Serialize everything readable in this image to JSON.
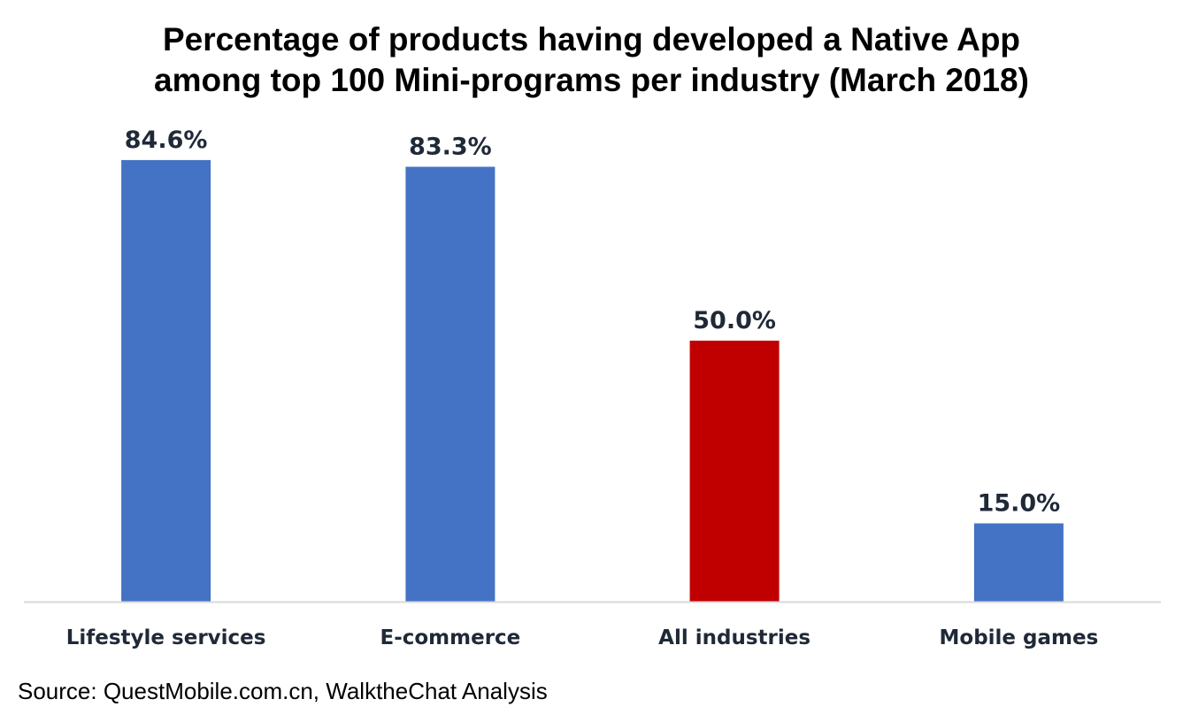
{
  "chart_data": {
    "type": "bar",
    "title": [
      "Percentage of products having developed a Native App",
      "among top 100 Mini-programs per industry (March 2018)"
    ],
    "categories": [
      "Lifestyle services",
      "E-commerce",
      "All industries",
      "Mobile games"
    ],
    "values": [
      84.6,
      83.3,
      50.0,
      15.0
    ],
    "data_labels": [
      "84.6%",
      "83.3%",
      "50.0%",
      "15.0%"
    ],
    "bar_colors": [
      "#4472C4",
      "#4472C4",
      "#C00000",
      "#4472C4"
    ],
    "label_color": "#1F2937",
    "axis_color": "#D9D9D9",
    "xlabel": "",
    "ylabel": "",
    "ylim": [
      0,
      100
    ],
    "grid": false,
    "legend": "none"
  },
  "source": "Source: QuestMobile.com.cn, WalktheChat Analysis"
}
